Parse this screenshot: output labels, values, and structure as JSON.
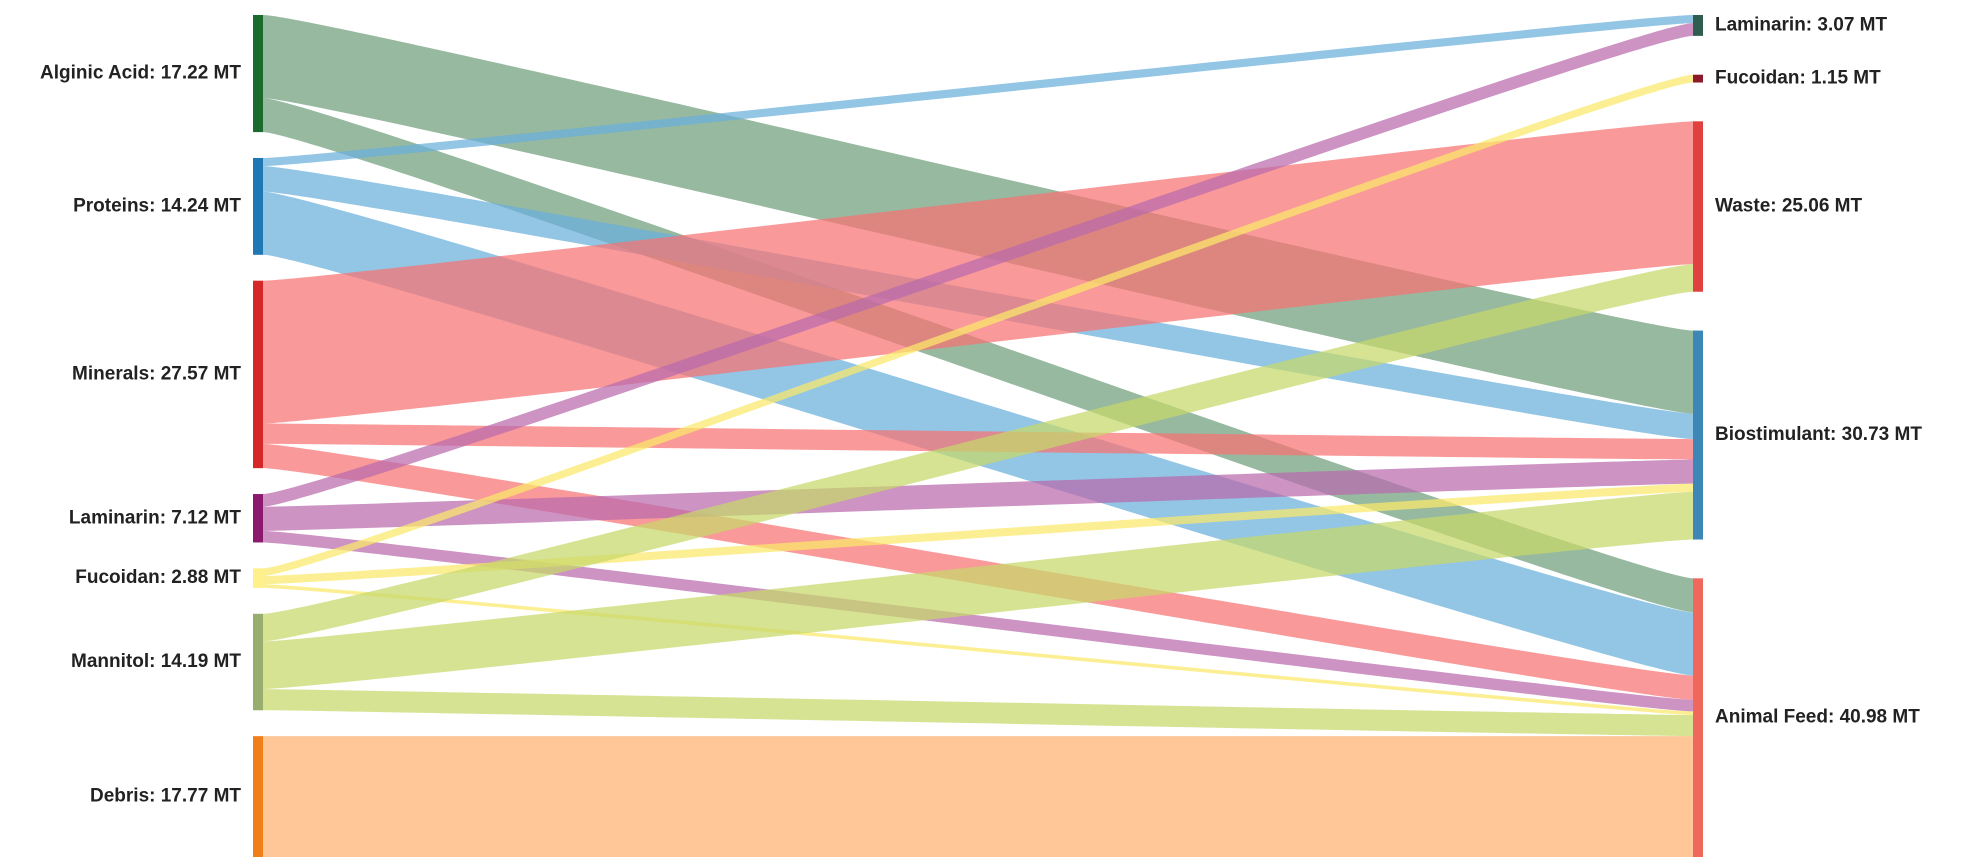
{
  "chart_data": {
    "type": "sankey",
    "sources": [
      {
        "label": "Alginic Acid: 17.22 MT",
        "value": 17.22,
        "color": "#1b6b2e",
        "link_color": "#6f9e7c"
      },
      {
        "label": "Proteins: 14.24 MT",
        "value": 14.24,
        "color": "#1f77b4",
        "link_color": "#6aaedb"
      },
      {
        "label": "Minerals: 27.57 MT",
        "value": 27.57,
        "color": "#d62728",
        "link_color": "#f87272"
      },
      {
        "label": "Laminarin: 7.12 MT",
        "value": 7.12,
        "color": "#8b1a6e",
        "link_color": "#b86aac"
      },
      {
        "label": "Fucoidan: 2.88 MT",
        "value": 2.88,
        "color": "#fff08a",
        "link_color": "#fbe96a"
      },
      {
        "label": "Mannitol: 14.19 MT",
        "value": 14.19,
        "color": "#98ae6e",
        "link_color": "#c6d86a"
      },
      {
        "label": "Debris: 17.77 MT",
        "value": 17.77,
        "color": "#f07f1a",
        "link_color": "#ffb070"
      }
    ],
    "targets": [
      {
        "label": "Laminarin: 3.07 MT",
        "value": 3.07,
        "color": "#2f5d4f"
      },
      {
        "label": "Fucoidan: 1.15 MT",
        "value": 1.15,
        "color": "#8b1a2a"
      },
      {
        "label": "Waste: 25.06 MT",
        "value": 25.06,
        "color": "#e0413f"
      },
      {
        "label": "Biostimulant: 30.73 MT",
        "value": 30.73,
        "color": "#3c87b6"
      },
      {
        "label": "Animal Feed: 40.98 MT",
        "value": 40.98,
        "color": "#f0685c"
      }
    ],
    "links": [
      {
        "source": 0,
        "target": 3,
        "value": 12.22
      },
      {
        "source": 0,
        "target": 4,
        "value": 5.0
      },
      {
        "source": 1,
        "target": 0,
        "value": 1.2
      },
      {
        "source": 1,
        "target": 3,
        "value": 3.74
      },
      {
        "source": 1,
        "target": 4,
        "value": 9.3
      },
      {
        "source": 2,
        "target": 2,
        "value": 21.0
      },
      {
        "source": 2,
        "target": 3,
        "value": 3.0
      },
      {
        "source": 2,
        "target": 4,
        "value": 3.57
      },
      {
        "source": 3,
        "target": 0,
        "value": 1.87
      },
      {
        "source": 3,
        "target": 3,
        "value": 3.55
      },
      {
        "source": 3,
        "target": 4,
        "value": 1.7
      },
      {
        "source": 4,
        "target": 1,
        "value": 1.15
      },
      {
        "source": 4,
        "target": 3,
        "value": 1.2
      },
      {
        "source": 4,
        "target": 4,
        "value": 0.53
      },
      {
        "source": 5,
        "target": 2,
        "value": 4.06
      },
      {
        "source": 5,
        "target": 3,
        "value": 7.02
      },
      {
        "source": 5,
        "target": 4,
        "value": 3.11
      },
      {
        "source": 6,
        "target": 4,
        "value": 17.77
      }
    ]
  }
}
